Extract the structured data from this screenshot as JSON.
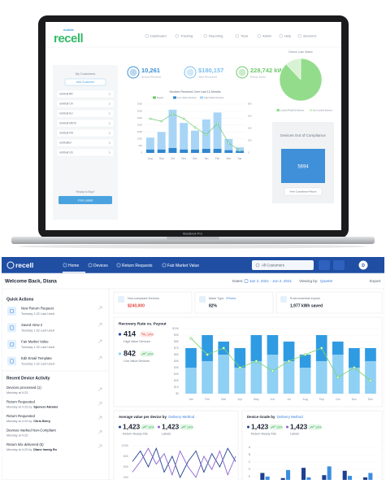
{
  "laptop": {
    "logo_small": "mobile",
    "logo": "recell",
    "nav": [
      "Dashboard",
      "Tracking",
      "Reporting",
      "Tools",
      "Admin",
      "Help",
      "damonric"
    ],
    "customers_title": "My Customers",
    "add_customer": "Add Customer",
    "customers": [
      "lumiball BR",
      "lumiball CA",
      "lumiball EU",
      "lumiball META",
      "lumiball FM",
      "lumiballtor",
      "lumiball US"
    ],
    "ready": "Ready to Buy?",
    "find_labels": "Find Labels",
    "stats": [
      {
        "value": "10,261",
        "label": "Devices Received"
      },
      {
        "value": "$180,157",
        "label": "Value Recovered"
      },
      {
        "value": "228,742 kWh",
        "label": "Energy Saved"
      }
    ],
    "chart": {
      "type": "bar",
      "title": "Devices Received Over Last 12 Months",
      "categories": [
        "Aug",
        "Sep",
        "Oct",
        "Nov",
        "Dec",
        "Jan",
        "Feb",
        "Mar",
        "Apr"
      ],
      "series": [
        {
          "name": "Repair",
          "type": "line",
          "axis": "y2",
          "color": "#6cc96a",
          "values": [
            560,
            520,
            640,
            560,
            420,
            300,
            480,
            160,
            40
          ]
        },
        {
          "name": "Low Value Devices",
          "color": "#2f86cf",
          "values": [
            250,
            250,
            350,
            250,
            250,
            300,
            300,
            200,
            150
          ]
        },
        {
          "name": "High Value Devices",
          "color": "#a8d5f6",
          "values": [
            850,
            1250,
            2750,
            1900,
            1350,
            2100,
            2600,
            800,
            250
          ]
        }
      ],
      "ylim": [
        0,
        3500
      ],
      "yticks": [
        0,
        500,
        1000,
        1500,
        2000,
        2500,
        3000,
        3500
      ],
      "y2lim": [
        0,
        800
      ],
      "y2ticks": [
        0,
        200,
        400,
        600,
        800
      ]
    },
    "pie": {
      "type": "pie",
      "title": "Device Loan Status",
      "categories": [
        "Locked iPad/iOS Devices",
        "Non-Locked Devices"
      ],
      "values": [
        88,
        12
      ],
      "colors": [
        "#93dc8c",
        "#d8f2d4"
      ]
    },
    "compliance": {
      "title": "Devices Out of Compliance",
      "value": "5694",
      "button": "View Compliance Report"
    },
    "device_label": "MacBook Pro"
  },
  "app": {
    "logo": "recell",
    "nav": [
      "Home",
      "Devices",
      "Return Requests",
      "Fair Market Value"
    ],
    "search": "All Customers",
    "avatar": "D",
    "welcome": "Welcome Back, Diana",
    "dates_label": "Dates:",
    "dates": "Jan 2, 2021 - Jun 2, 2021",
    "viewing_label": "Viewing by:",
    "viewing": "Quarter",
    "export": "Export",
    "quick_actions": {
      "title": "Quick Actions",
      "items": [
        {
          "title": "New Return Request",
          "sub": "Tuesday 1:32 Last Used"
        },
        {
          "title": "Saved View 2",
          "sub": "Tuesday 1:32 Last Used"
        },
        {
          "title": "Fair Market Value",
          "sub": "Tuesday 1:32 Last Used"
        },
        {
          "title": "Edit Email Template",
          "sub": "Tuesday 1:32 Last Used"
        }
      ]
    },
    "activity": {
      "title": "Recent Device Activity",
      "items": [
        {
          "title": "Devices processed (1)",
          "sub": "Monday at 4:23"
        },
        {
          "title": "Return Requested",
          "sub": "Monday at 4:23 by",
          "who": "Spencer Abrams"
        },
        {
          "title": "Return Requested",
          "sub": "Monday at 4:23 by",
          "who": "Chris Berry"
        },
        {
          "title": "Devices marked Non-Compliant",
          "sub": "Monday at 4:23"
        },
        {
          "title": "Return kits delivered (5)",
          "sub": "Monday at 4:23 by",
          "who": "Diane Immig Ro"
        }
      ]
    },
    "cards": [
      {
        "label": "Non-compliant Devices",
        "value": "$240,000"
      },
      {
        "label": "Make Type",
        "filter": "iPhone",
        "value": "82%"
      },
      {
        "label": "Environmental Impact",
        "value": "1,977 kWh saved"
      }
    ],
    "recovery": {
      "title": "Recovery Rate vs. Payout",
      "stats": [
        {
          "value": "414",
          "change": "14%",
          "label": "High Value Devices"
        },
        {
          "value": "842",
          "change": "13%",
          "label": "Low Value Devices"
        }
      ],
      "chart": {
        "type": "bar",
        "categories": [
          "Jan",
          "Feb",
          "Mar",
          "Apr",
          "May",
          "Jun",
          "Jul",
          "Aug",
          "Sep",
          "Oct",
          "Nov",
          "Dec"
        ],
        "series": [
          {
            "color": "#8fd0f5",
            "values": [
              4000,
              5000,
              6000,
              4000,
              5000,
              6000,
              5000,
              4000,
              5000,
              6000,
              4000,
              5000
            ]
          },
          {
            "color": "#2f9be3",
            "values": [
              3000,
              4000,
              2000,
              3000,
              4000,
              3000,
              3000,
              2000,
              4000,
              2000,
              3000,
              2000
            ]
          },
          {
            "type": "line",
            "color": "#7ed56f",
            "values": [
              8500,
              6000,
              7000,
              4000,
              5000,
              3500,
              5000,
              6000,
              7000,
              2500,
              4000,
              2000
            ]
          }
        ],
        "ylim": [
          0,
          10000
        ],
        "yticks": [
          {
            "value": 0,
            "label": "$0"
          },
          {
            "value": 1000,
            "label": "$1K"
          },
          {
            "value": 2000,
            "label": "$2K"
          },
          {
            "value": 3000,
            "label": "$3K"
          },
          {
            "value": 4000,
            "label": "$4K"
          },
          {
            "value": 5000,
            "label": "$5K"
          },
          {
            "value": 6000,
            "label": "$6K"
          },
          {
            "value": 7000,
            "label": "$7K"
          },
          {
            "value": 8000,
            "label": "$8K"
          },
          {
            "value": 9000,
            "label": "$9K"
          },
          {
            "value": 10000,
            "label": "$10K"
          }
        ]
      }
    },
    "average": {
      "title": "Average value per device by",
      "filter": "Delivery Method",
      "stats": [
        {
          "value": "1,423",
          "change": "13%",
          "label": "Return Ready Kits"
        },
        {
          "value": "1,423",
          "change": "13%",
          "label": "Labels"
        }
      ],
      "chart": {
        "type": "line",
        "series": [
          {
            "color": "#1f3f8f",
            "values": [
              700,
              900,
              600,
              950,
              500,
              800,
              400,
              700,
              900,
              500,
              850,
              600,
              950,
              700
            ]
          },
          {
            "color": "#8a63d2",
            "values": [
              500,
              700,
              950,
              650,
              850,
              450,
              900,
              600,
              400,
              800,
              550,
              900,
              450,
              800
            ]
          }
        ],
        "ylim": [
          200,
          1000
        ],
        "yticks": [
          1000,
          800,
          600,
          400
        ]
      }
    },
    "grade": {
      "title": "Device Grade by",
      "filter": "Delivery Method",
      "stats": [
        {
          "value": "1,423",
          "change": "13%",
          "label": "Return Ready Kits"
        },
        {
          "value": "1,423",
          "change": "13%",
          "label": "Labels"
        }
      ],
      "chart": {
        "type": "bar",
        "series": [
          {
            "color": "#1f3f8f",
            "values": [
              1.5,
              0.8,
              2.2,
              1.2,
              1.8,
              0.9
            ]
          },
          {
            "color": "#3c8fe0",
            "values": [
              1.0,
              1.9,
              0.9,
              2.4,
              1.1,
              1.5
            ]
          }
        ],
        "ylim": [
          0,
          5
        ],
        "yticks": [
          {
            "value": 5,
            "label": "A"
          },
          {
            "value": 4,
            "label": "B"
          },
          {
            "value": 3,
            "label": "C"
          },
          {
            "value": 2,
            "label": "D"
          },
          {
            "value": 1,
            "label": "E"
          }
        ]
      }
    }
  }
}
